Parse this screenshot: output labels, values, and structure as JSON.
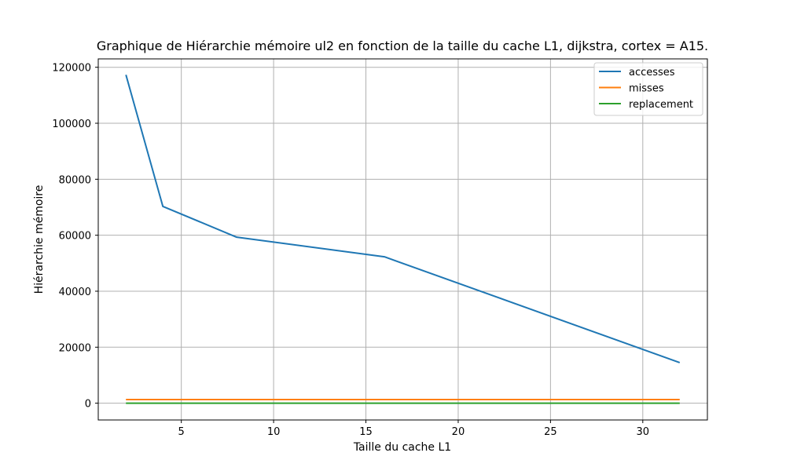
{
  "chart_data": {
    "type": "line",
    "title": "Graphique de Hiérarchie mémoire ul2 en fonction de la taille du cache L1, dijkstra, cortex = A15.",
    "xlabel": "Taille du cache L1",
    "ylabel": "Hiérarchie mémoire",
    "x": [
      2,
      4,
      8,
      16,
      32
    ],
    "xlim": [
      0.5,
      33.5
    ],
    "ylim": [
      -6000,
      123000
    ],
    "xticks": [
      5,
      10,
      15,
      20,
      25,
      30
    ],
    "yticks": [
      0,
      20000,
      40000,
      60000,
      80000,
      100000,
      120000
    ],
    "grid": true,
    "legend_position": "top-right",
    "series": [
      {
        "name": "accesses",
        "color": "#1f77b4",
        "values": [
          117300,
          70300,
          59300,
          52300,
          14500
        ]
      },
      {
        "name": "misses",
        "color": "#ff7f0e",
        "values": [
          1300,
          1300,
          1300,
          1300,
          1300
        ]
      },
      {
        "name": "replacement",
        "color": "#2ca02c",
        "values": [
          0,
          0,
          0,
          0,
          0
        ]
      }
    ]
  }
}
